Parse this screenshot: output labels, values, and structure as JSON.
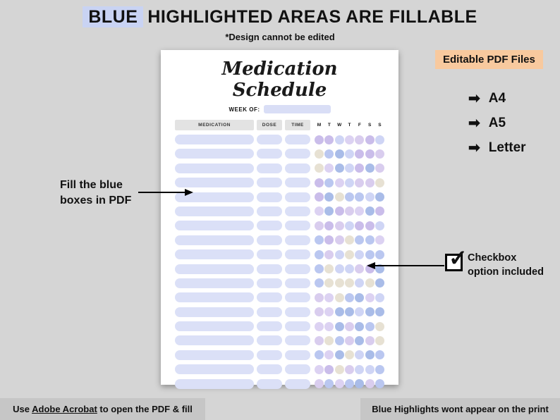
{
  "header": {
    "highlight_word": "BLUE",
    "title_rest": "HIGHLIGHTED AREAS ARE FILLABLE",
    "subtitle": "*Design cannot be edited"
  },
  "paper": {
    "title": "Medication Schedule",
    "week_of_label": "WEEK OF:",
    "col_medication": "MEDICATION",
    "col_dose": "DOSE",
    "col_time": "TIME",
    "day_headers": [
      "M",
      "T",
      "W",
      "T",
      "F",
      "S",
      "S"
    ],
    "row_count": 18,
    "circle_palette": [
      "#cabdea",
      "#dcd2f2",
      "#bac7f0",
      "#e7e1d3",
      "#cfd5f5",
      "#a9bce8",
      "#d9cdee"
    ]
  },
  "right_panel": {
    "badge": "Editable PDF Files",
    "arrow_glyph": "➡",
    "formats": [
      "A4",
      "A5",
      "Letter"
    ]
  },
  "annotations": {
    "fill_note_line1": "Fill the blue",
    "fill_note_line2": "boxes in PDF",
    "checkbox_note_line1": "Checkbox",
    "checkbox_note_line2": "option included",
    "check_glyph": "✓"
  },
  "footer": {
    "left_pre": "Use ",
    "left_link": "Adobe Acrobat",
    "left_post": " to open the PDF & fill",
    "right": "Blue Highlights wont appear on the print"
  },
  "colors": {
    "background": "#d5d5d5",
    "blue_highlight": "#c9d3f3",
    "field_blue": "#dbe0f7",
    "orange_highlight": "#f8c99e",
    "footer_bar": "#c6c6c6"
  }
}
